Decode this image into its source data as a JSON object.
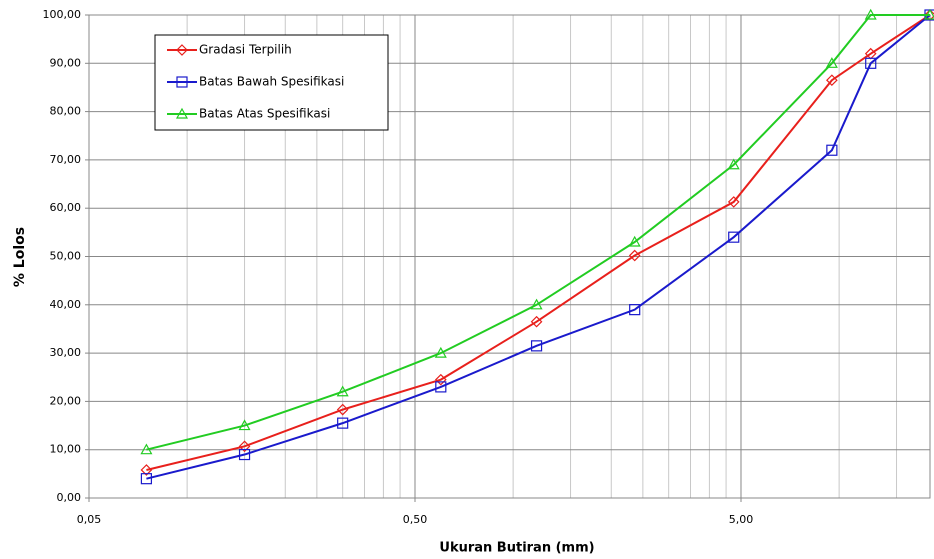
{
  "chart_data": {
    "type": "line",
    "x_label": "Ukuran Butiran (mm)",
    "y_label": "% Lolos",
    "x": [
      0.075,
      0.15,
      0.3,
      0.6,
      1.18,
      2.36,
      4.75,
      9.5,
      12.5,
      19
    ],
    "series": [
      {
        "name": "Gradasi Terpilih",
        "color": "#e8201c",
        "marker": "diamond",
        "values": [
          5.8,
          10.7,
          18.3,
          24.5,
          36.5,
          50.2,
          61.3,
          86.5,
          92,
          100
        ]
      },
      {
        "name": "Batas Bawah Spesifikasi",
        "color": "#1a1acc",
        "marker": "square",
        "values": [
          4,
          9,
          15.5,
          23,
          31.5,
          39,
          54,
          72,
          90,
          100
        ]
      },
      {
        "name": "Batas Atas Spesifikasi",
        "color": "#22cc22",
        "marker": "triangle",
        "values": [
          10,
          15,
          22,
          30,
          40,
          53,
          69,
          90,
          100,
          100
        ]
      }
    ],
    "xlim": [
      0.05,
      19
    ],
    "x_log": true,
    "xticks": [
      {
        "value": 0.05,
        "label": "0,05"
      },
      {
        "value": 0.5,
        "label": "0,50"
      },
      {
        "value": 5,
        "label": "5,00"
      }
    ],
    "ylim": [
      0,
      100
    ],
    "yticks": [
      {
        "value": 0,
        "label": "0,00"
      },
      {
        "value": 10,
        "label": "10,00"
      },
      {
        "value": 20,
        "label": "20,00"
      },
      {
        "value": 30,
        "label": "30,00"
      },
      {
        "value": 40,
        "label": "40,00"
      },
      {
        "value": 50,
        "label": "50,00"
      },
      {
        "value": 60,
        "label": "60,00"
      },
      {
        "value": 70,
        "label": "70,00"
      },
      {
        "value": 80,
        "label": "80,00"
      },
      {
        "value": 90,
        "label": "90,00"
      },
      {
        "value": 100,
        "label": "100,00"
      }
    ],
    "grid": true,
    "minor_grid": true,
    "legend": "top-left"
  }
}
